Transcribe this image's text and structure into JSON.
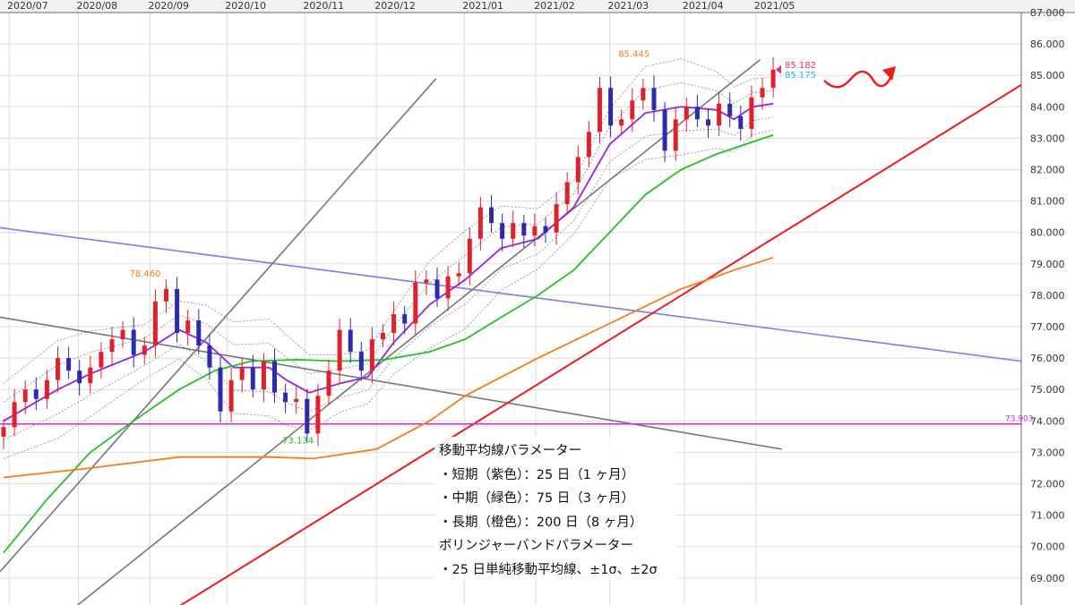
{
  "chart_data": {
    "type": "candlestick",
    "title": "",
    "x_ticks": [
      {
        "label": "2020/07",
        "index": 0.5
      },
      {
        "label": "2020/08",
        "index": 6.9
      },
      {
        "label": "2020/09",
        "index": 13.5
      },
      {
        "label": "2020/10",
        "index": 20.6
      },
      {
        "label": "2020/11",
        "index": 27.8
      },
      {
        "label": "2020/12",
        "index": 34.4
      },
      {
        "label": "2021/01",
        "index": 42.5
      },
      {
        "label": "2021/02",
        "index": 49.1
      },
      {
        "label": "2021/03",
        "index": 55.9
      },
      {
        "label": "2021/04",
        "index": 62.8
      },
      {
        "label": "2021/05",
        "index": 69.4
      }
    ],
    "ylim": [
      69,
      87
    ],
    "y_ticks": [
      "87.000",
      "86.000",
      "85.000",
      "84.000",
      "83.000",
      "82.000",
      "81.000",
      "80.000",
      "79.000",
      "78.000",
      "77.000",
      "76.000",
      "75.000",
      "74.000",
      "73.000",
      "72.000",
      "71.000",
      "70.000",
      "69.000"
    ],
    "closes": [
      73.8,
      74.6,
      75.0,
      74.7,
      75.3,
      76.0,
      75.6,
      75.2,
      75.7,
      76.2,
      76.6,
      76.9,
      76.1,
      76.4,
      77.8,
      78.2,
      76.8,
      77.2,
      76.4,
      75.7,
      74.3,
      75.3,
      75.7,
      75.0,
      75.9,
      74.9,
      74.6,
      74.7,
      73.6,
      74.8,
      75.6,
      76.9,
      76.2,
      75.6,
      76.6,
      76.8,
      77.4,
      77.1,
      78.4,
      78.5,
      77.9,
      78.6,
      78.7,
      79.8,
      80.8,
      80.3,
      79.8,
      80.3,
      79.9,
      80.2,
      80.0,
      80.9,
      81.6,
      82.4,
      83.2,
      84.6,
      83.4,
      83.6,
      84.2,
      84.6,
      83.9,
      82.6,
      83.6,
      84.0,
      83.6,
      83.4,
      84.1,
      83.7,
      83.3,
      84.3,
      84.6,
      85.18
    ],
    "open_first": 73.5,
    "colors": {
      "up": "#e0202a",
      "down": "#2b2bb0"
    },
    "moving_averages": [
      {
        "name": "短期 25日",
        "color": "#9b1fe8",
        "points": [
          [
            0,
            74.0
          ],
          [
            5,
            75.0
          ],
          [
            8,
            75.5
          ],
          [
            13,
            76.2
          ],
          [
            16.2,
            76.9
          ],
          [
            18.7,
            76.5
          ],
          [
            21.2,
            75.7
          ],
          [
            24.5,
            75.7
          ],
          [
            26.1,
            75.3
          ],
          [
            28.2,
            74.9
          ],
          [
            31.1,
            75.2
          ],
          [
            33.6,
            75.4
          ],
          [
            36,
            76.5
          ],
          [
            39.3,
            77.7
          ],
          [
            42.6,
            78.5
          ],
          [
            45.9,
            79.5
          ],
          [
            49.3,
            79.8
          ],
          [
            52.6,
            80.8
          ],
          [
            55.9,
            82.8
          ],
          [
            59.2,
            83.8
          ],
          [
            62.5,
            84.0
          ],
          [
            65.8,
            83.9
          ],
          [
            67.4,
            83.6
          ],
          [
            69.1,
            84.0
          ],
          [
            71,
            84.1
          ]
        ]
      },
      {
        "name": "中期 75日",
        "color": "#22c322",
        "points": [
          [
            0,
            69.8
          ],
          [
            4,
            71.5
          ],
          [
            8,
            73.0
          ],
          [
            12,
            74.0
          ],
          [
            16.2,
            75.0
          ],
          [
            19.5,
            75.6
          ],
          [
            22.8,
            75.9
          ],
          [
            27,
            75.95
          ],
          [
            31.1,
            75.9
          ],
          [
            35.2,
            75.95
          ],
          [
            39.3,
            76.2
          ],
          [
            42.6,
            76.6
          ],
          [
            45.9,
            77.3
          ],
          [
            49.3,
            78.0
          ],
          [
            52.6,
            78.8
          ],
          [
            55.9,
            80.0
          ],
          [
            59.2,
            81.2
          ],
          [
            62.5,
            82.0
          ],
          [
            65.8,
            82.5
          ],
          [
            71,
            83.1
          ]
        ]
      },
      {
        "name": "長期 200日",
        "color": "#f57c12",
        "points": [
          [
            0,
            72.2
          ],
          [
            8,
            72.5
          ],
          [
            16.2,
            72.85
          ],
          [
            24.5,
            72.85
          ],
          [
            28.6,
            72.8
          ],
          [
            34.4,
            73.1
          ],
          [
            39.3,
            74.0
          ],
          [
            42.6,
            74.8
          ],
          [
            49.3,
            76.0
          ],
          [
            55.9,
            77.1
          ],
          [
            62.5,
            78.2
          ],
          [
            67.4,
            78.8
          ],
          [
            71,
            79.2
          ]
        ]
      }
    ],
    "bollinger_sigma_approx": 0.6,
    "trend_lines": [
      {
        "color": "#7b7bf0",
        "points": [
          [
            -0.33,
            80.15
          ],
          [
            93.9,
            75.9
          ]
        ]
      },
      {
        "color": "#777777",
        "points": [
          [
            -0.33,
            77.3
          ],
          [
            71.8,
            73.1
          ]
        ]
      },
      {
        "color": "#777777",
        "points": [
          [
            -0.33,
            69.2
          ],
          [
            39.9,
            84.9
          ]
        ]
      },
      {
        "color": "#777777",
        "points": [
          [
            6.7,
            68.1
          ],
          [
            69.8,
            85.5
          ]
        ]
      },
      {
        "color": "#ee1c1c",
        "points": [
          [
            16.2,
            68.1
          ],
          [
            93.9,
            84.7
          ]
        ]
      }
    ],
    "horizontal_line": {
      "value": 73.903,
      "label": "73.903",
      "color": "#e020e0"
    },
    "annotations": [
      {
        "label": "85.445",
        "color": "#f57c12",
        "index": 58.2,
        "price": 85.445
      },
      {
        "label": "78.460",
        "color": "#f57c12",
        "index": 13.1,
        "price": 78.46
      },
      {
        "label": "73.134",
        "color": "#22b522",
        "index": 27.2,
        "price": 73.134
      }
    ],
    "price_labels": {
      "bid": "85.182",
      "bid_color": "#f0306a",
      "ask": "85.175",
      "ask_color": "#19c0f0"
    }
  },
  "notes": {
    "ma_title": "移動平均線パラメーター",
    "ma_short": "・短期（紫色）：25 日（1 ヶ月）",
    "ma_mid": "・中期（緑色）：75 日（3 ヶ月）",
    "ma_long": "・長期（橙色）：200 日（8 ヶ月）",
    "bb_title": "ボリンジャーバンドパラメーター",
    "bb_params": "・25 日単純移動平均線、±1σ、±2σ"
  }
}
